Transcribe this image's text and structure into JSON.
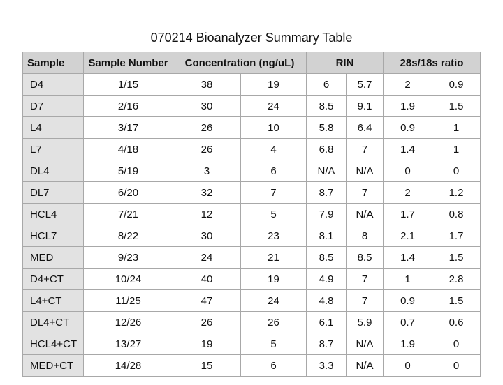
{
  "title": "070214 Bioanalyzer Summary Table",
  "headers": {
    "sample": "Sample",
    "sample_number": "Sample Number",
    "concentration": "Concentration (ng/uL)",
    "rin": "RIN",
    "ratio": "28s/18s ratio"
  },
  "rows": [
    [
      "D4",
      "1/15",
      "38",
      "19",
      "6",
      "5.7",
      "2",
      "0.9"
    ],
    [
      "D7",
      "2/16",
      "30",
      "24",
      "8.5",
      "9.1",
      "1.9",
      "1.5"
    ],
    [
      "L4",
      "3/17",
      "26",
      "10",
      "5.8",
      "6.4",
      "0.9",
      "1"
    ],
    [
      "L7",
      "4/18",
      "26",
      "4",
      "6.8",
      "7",
      "1.4",
      "1"
    ],
    [
      "DL4",
      "5/19",
      "3",
      "6",
      "N/A",
      "N/A",
      "0",
      "0"
    ],
    [
      "DL7",
      "6/20",
      "32",
      "7",
      "8.7",
      "7",
      "2",
      "1.2"
    ],
    [
      "HCL4",
      "7/21",
      "12",
      "5",
      "7.9",
      "N/A",
      "1.7",
      "0.8"
    ],
    [
      "HCL7",
      "8/22",
      "30",
      "23",
      "8.1",
      "8",
      "2.1",
      "1.7"
    ],
    [
      "MED",
      "9/23",
      "24",
      "21",
      "8.5",
      "8.5",
      "1.4",
      "1.5"
    ],
    [
      "D4+CT",
      "10/24",
      "40",
      "19",
      "4.9",
      "7",
      "1",
      "2.8"
    ],
    [
      "L4+CT",
      "11/25",
      "47",
      "24",
      "4.8",
      "7",
      "0.9",
      "1.5"
    ],
    [
      "DL4+CT",
      "12/26",
      "26",
      "26",
      "6.1",
      "5.9",
      "0.7",
      "0.6"
    ],
    [
      "HCL4+CT",
      "13/27",
      "19",
      "5",
      "8.7",
      "N/A",
      "1.9",
      "0"
    ],
    [
      "MED+CT",
      "14/28",
      "15",
      "6",
      "3.3",
      "N/A",
      "0",
      "0"
    ]
  ]
}
